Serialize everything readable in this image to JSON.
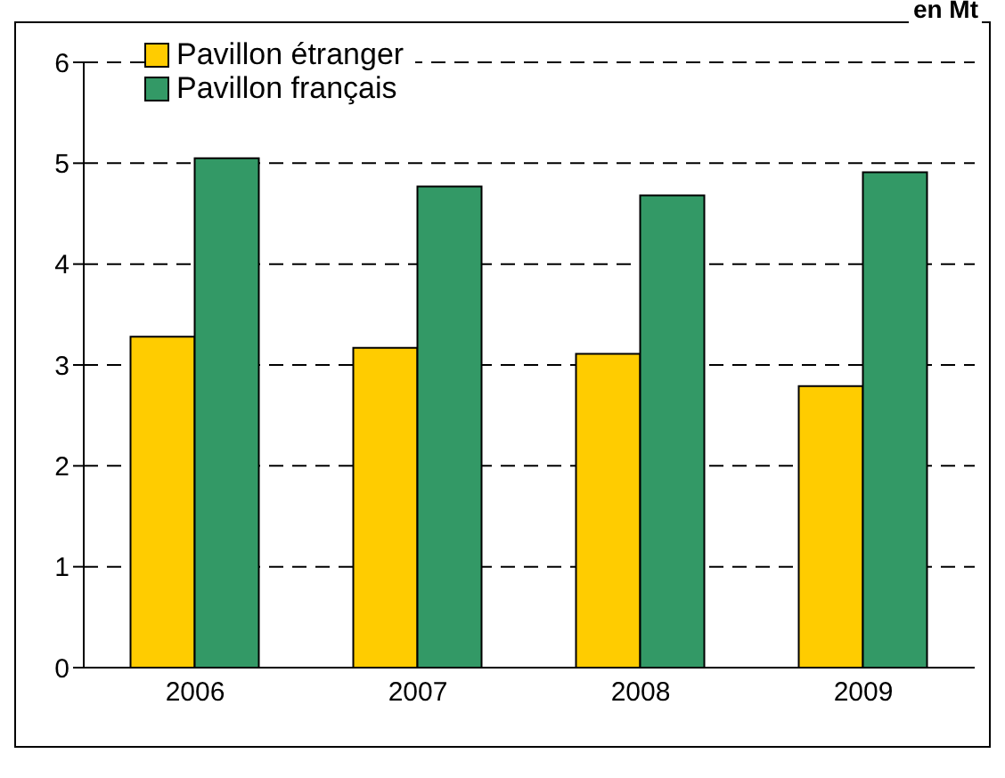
{
  "chart_data": {
    "type": "bar",
    "categories": [
      "2006",
      "2007",
      "2008",
      "2009"
    ],
    "series": [
      {
        "name": "Pavillon étranger",
        "color": "#ffcc00",
        "values": [
          3.28,
          3.17,
          3.11,
          2.79
        ]
      },
      {
        "name": "Pavillon français",
        "color": "#339966",
        "values": [
          5.05,
          4.77,
          4.68,
          4.91
        ]
      }
    ],
    "ylim": [
      0,
      6
    ],
    "yticks": [
      0,
      1,
      2,
      3,
      4,
      5,
      6
    ],
    "grid": "y",
    "legend": "top left",
    "annotations": [
      "en Mt"
    ]
  }
}
